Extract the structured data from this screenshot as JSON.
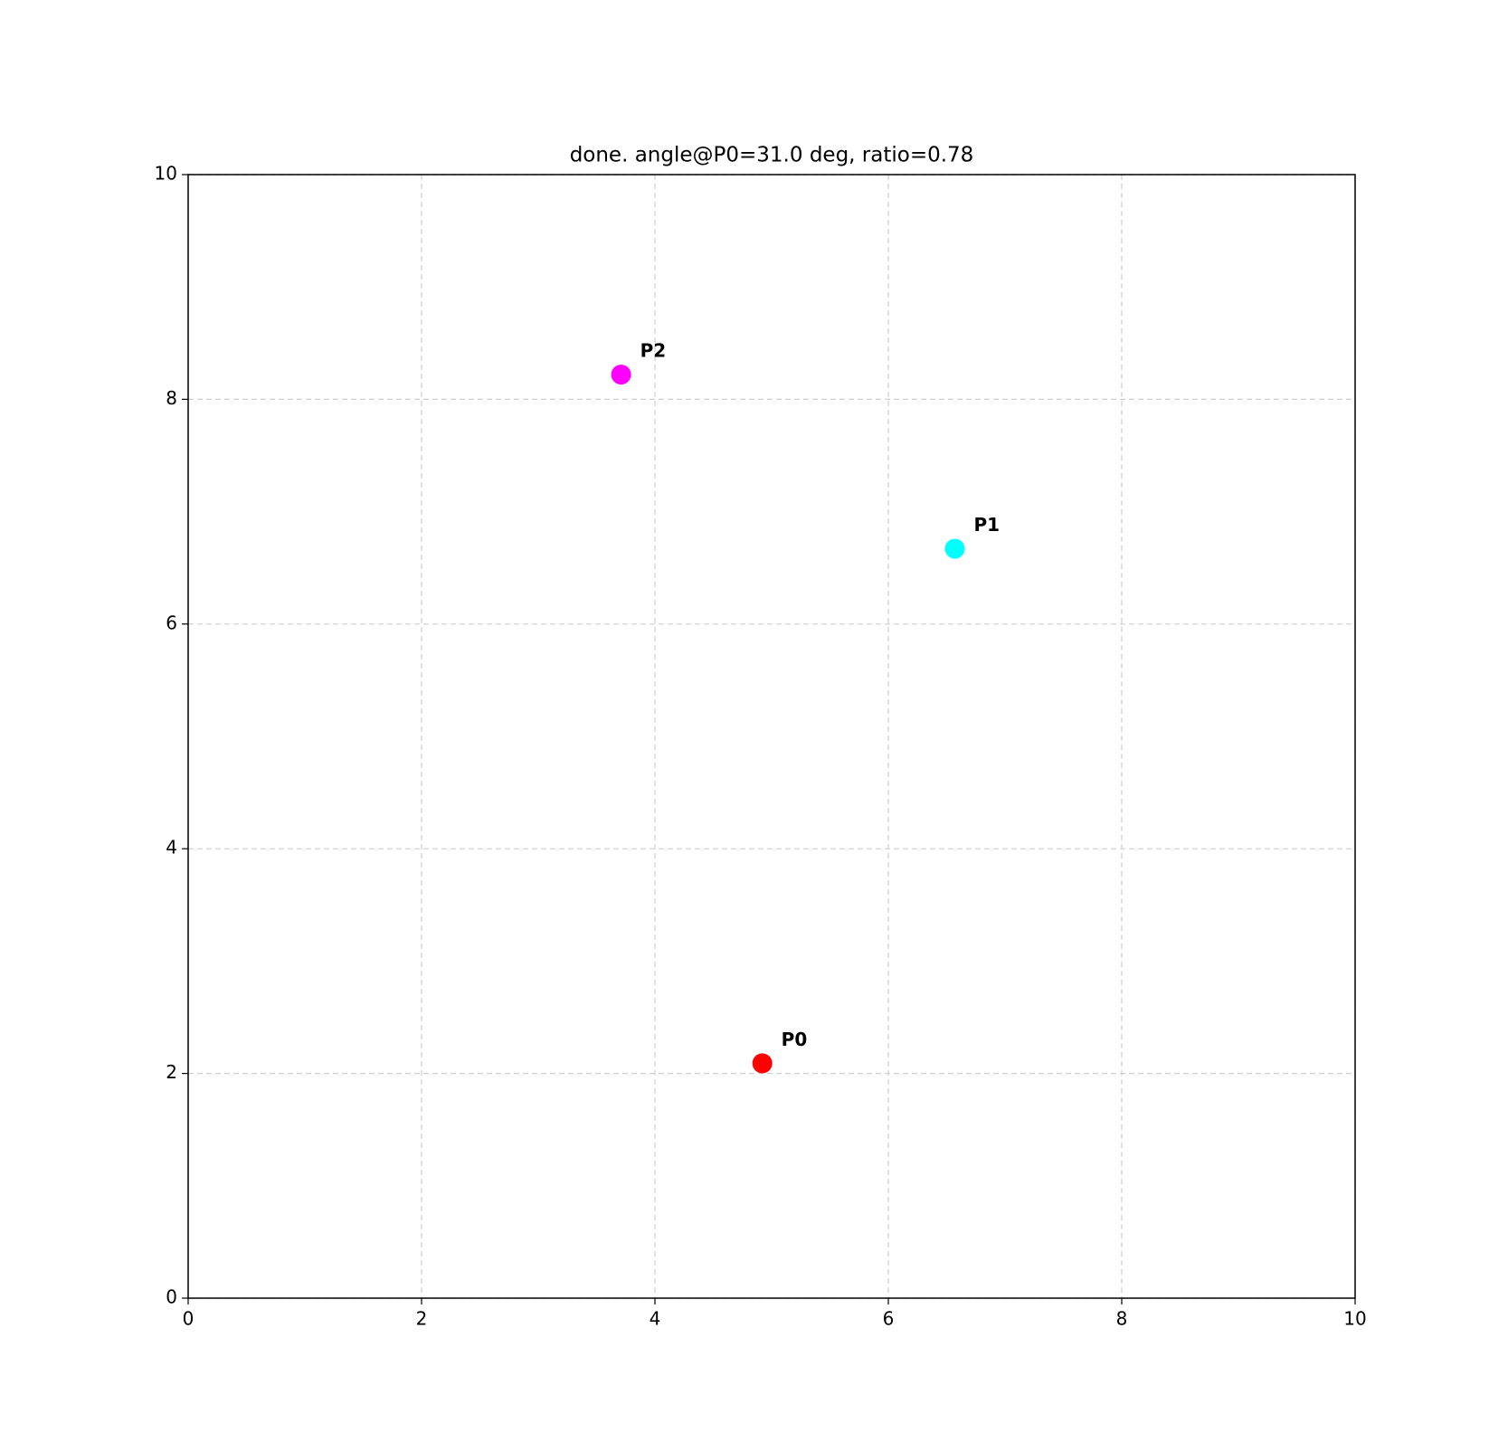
{
  "chart_data": {
    "type": "scatter",
    "title": "done. angle@P0=31.0 deg, ratio=0.78",
    "x": [
      4.92,
      6.57,
      3.71
    ],
    "values": [
      2.09,
      6.67,
      8.22
    ],
    "point_labels": [
      "P0",
      "P1",
      "P2"
    ],
    "colors": [
      "#ff0000",
      "#00ffff",
      "#ff00ff"
    ],
    "xlim": [
      0,
      10
    ],
    "ylim": [
      0,
      10
    ],
    "xticks": [
      0,
      2,
      4,
      6,
      8,
      10
    ],
    "yticks": [
      0,
      2,
      4,
      6,
      8,
      10
    ],
    "grid": true
  }
}
